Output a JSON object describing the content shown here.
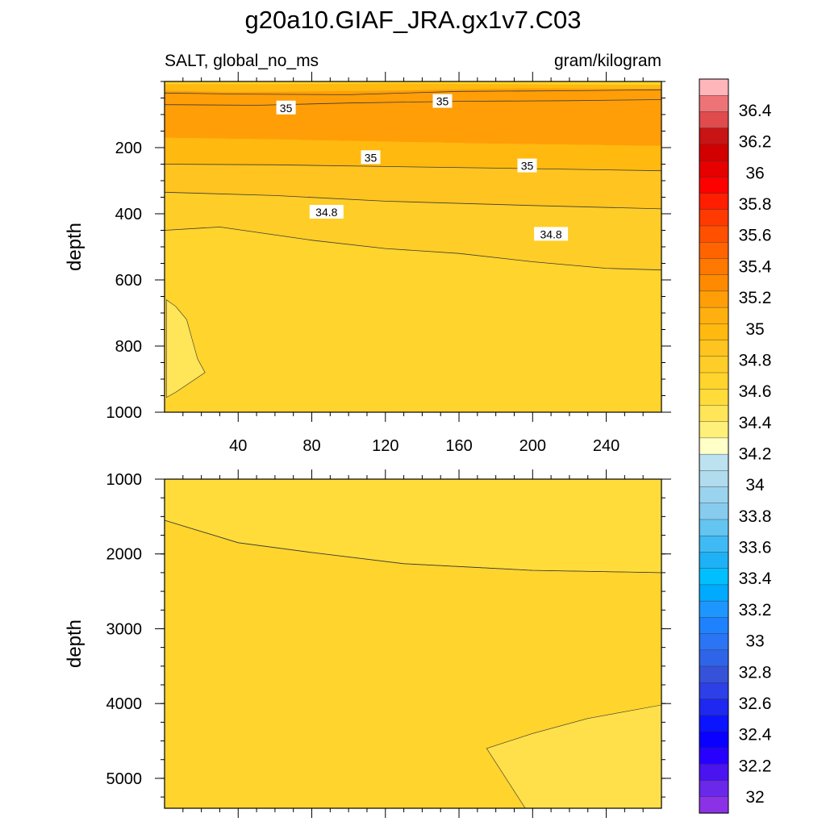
{
  "chart_data": {
    "type": "contour",
    "title": "g20a10.GIAF_JRA.gx1v7.C03",
    "variable_label": "SALT, global_no_ms",
    "units_label": "gram/kilogram",
    "x": {
      "range": [
        0,
        270
      ],
      "ticks": [
        40,
        80,
        120,
        160,
        200,
        240
      ],
      "label": ""
    },
    "panels": [
      {
        "name": "upper",
        "ylabel": "depth",
        "ylim": [
          0,
          1000
        ],
        "yticks": [
          200,
          400,
          600,
          800,
          1000
        ],
        "fill_color": "#FFD42C",
        "regions": [
          {
            "name": "surface-band",
            "color": "#FFB90F",
            "boundary_top": [
              [
                0,
                8
              ],
              [
                60,
                8
              ],
              [
                120,
                6
              ],
              [
                180,
                8
              ],
              [
                270,
                10
              ]
            ],
            "boundary_bottom": [
              [
                0,
                28
              ],
              [
                40,
                32
              ],
              [
                80,
                30
              ],
              [
                120,
                28
              ],
              [
                160,
                24
              ],
              [
                200,
                20
              ],
              [
                240,
                22
              ],
              [
                270,
                22
              ]
            ]
          },
          {
            "name": "core-35.2",
            "color": "#FF9E07",
            "boundary_top": [
              [
                0,
                28
              ],
              [
                40,
                32
              ],
              [
                80,
                30
              ],
              [
                120,
                28
              ],
              [
                160,
                24
              ],
              [
                200,
                20
              ],
              [
                240,
                22
              ],
              [
                270,
                22
              ]
            ],
            "boundary_bottom": [
              [
                0,
                170
              ],
              [
                60,
                175
              ],
              [
                120,
                182
              ],
              [
                180,
                188
              ],
              [
                270,
                195
              ]
            ]
          },
          {
            "name": "band-35",
            "color": "#FFB90F",
            "boundary_top": [
              [
                0,
                170
              ],
              [
                60,
                175
              ],
              [
                120,
                182
              ],
              [
                180,
                188
              ],
              [
                270,
                195
              ]
            ],
            "boundary_bottom": [
              [
                0,
                250
              ],
              [
                60,
                252
              ],
              [
                120,
                257
              ],
              [
                180,
                262
              ],
              [
                270,
                270
              ]
            ]
          },
          {
            "name": "band-34.9",
            "color": "#FFC41F",
            "boundary_top": [
              [
                0,
                250
              ],
              [
                60,
                252
              ],
              [
                120,
                257
              ],
              [
                180,
                262
              ],
              [
                270,
                270
              ]
            ],
            "boundary_bottom": [
              [
                0,
                335
              ],
              [
                60,
                345
              ],
              [
                120,
                362
              ],
              [
                200,
                375
              ],
              [
                270,
                385
              ]
            ]
          },
          {
            "name": "band-34.8",
            "color": "#FFCD27",
            "boundary_top": [
              [
                0,
                335
              ],
              [
                60,
                345
              ],
              [
                120,
                362
              ],
              [
                200,
                375
              ],
              [
                270,
                385
              ]
            ],
            "boundary_bottom": [
              [
                0,
                450
              ],
              [
                30,
                440
              ],
              [
                80,
                480
              ],
              [
                120,
                505
              ],
              [
                160,
                520
              ],
              [
                200,
                545
              ],
              [
                240,
                565
              ],
              [
                270,
                570
              ]
            ]
          },
          {
            "name": "band-34.7",
            "color": "#FFD42C",
            "boundary_top": [
              [
                0,
                450
              ],
              [
                30,
                440
              ],
              [
                80,
                480
              ],
              [
                120,
                505
              ],
              [
                160,
                520
              ],
              [
                200,
                545
              ],
              [
                240,
                565
              ],
              [
                270,
                570
              ]
            ],
            "boundary_bottom": [
              [
                0,
                1000
              ],
              [
                270,
                1000
              ]
            ]
          }
        ],
        "patches": [
          {
            "name": "low-salinity-patch",
            "color": "#FFE558",
            "points": [
              [
                1,
                660
              ],
              [
                6,
                680
              ],
              [
                12,
                720
              ],
              [
                15,
                780
              ],
              [
                18,
                840
              ],
              [
                22,
                880
              ],
              [
                14,
                910
              ],
              [
                6,
                940
              ],
              [
                1,
                955
              ]
            ]
          }
        ],
        "contour_lines": [
          {
            "name": "iso-35.1",
            "points": [
              [
                0,
                35
              ],
              [
                40,
                38
              ],
              [
                100,
                40
              ],
              [
                160,
                30
              ],
              [
                220,
                28
              ],
              [
                270,
                25
              ]
            ]
          },
          {
            "name": "iso-35.0-shallow",
            "points": [
              [
                0,
                70
              ],
              [
                50,
                72
              ],
              [
                100,
                65
              ],
              [
                160,
                60
              ],
              [
                220,
                58
              ],
              [
                270,
                55
              ]
            ]
          },
          {
            "name": "iso-35.0-deep",
            "points": [
              [
                0,
                250
              ],
              [
                60,
                252
              ],
              [
                120,
                257
              ],
              [
                180,
                262
              ],
              [
                270,
                270
              ]
            ]
          },
          {
            "name": "iso-34.9",
            "points": [
              [
                0,
                335
              ],
              [
                60,
                345
              ],
              [
                120,
                362
              ],
              [
                200,
                375
              ],
              [
                270,
                385
              ]
            ]
          },
          {
            "name": "iso-34.8",
            "points": [
              [
                0,
                450
              ],
              [
                30,
                440
              ],
              [
                80,
                480
              ],
              [
                120,
                505
              ],
              [
                160,
                520
              ],
              [
                200,
                545
              ],
              [
                240,
                565
              ],
              [
                270,
                570
              ]
            ]
          }
        ],
        "labels": [
          {
            "text": "35",
            "x": 66,
            "y": 80
          },
          {
            "text": "35",
            "x": 151,
            "y": 60
          },
          {
            "text": "35",
            "x": 112,
            "y": 230
          },
          {
            "text": "35",
            "x": 197,
            "y": 255
          },
          {
            "text": "34.8",
            "x": 88,
            "y": 395
          },
          {
            "text": "34.8",
            "x": 210,
            "y": 462
          }
        ]
      },
      {
        "name": "lower",
        "ylabel": "depth",
        "ylim": [
          1000,
          5400
        ],
        "yticks": [
          1000,
          2000,
          3000,
          4000,
          5000
        ],
        "fill_color": "#FFD42C",
        "patches": [
          {
            "name": "upper-deep-band",
            "color": "#FFDC3A",
            "points": [
              [
                0,
                1000
              ],
              [
                270,
                1000
              ],
              [
                270,
                2250
              ],
              [
                200,
                2220
              ],
              [
                130,
                2130
              ],
              [
                80,
                1980
              ],
              [
                40,
                1850
              ],
              [
                0,
                1550
              ]
            ]
          },
          {
            "name": "deep-bottom-patch",
            "color": "#FFE04A",
            "points": [
              [
                270,
                4020
              ],
              [
                230,
                4200
              ],
              [
                200,
                4400
              ],
              [
                175,
                4600
              ],
              [
                196,
                5400
              ],
              [
                270,
                5400
              ]
            ]
          }
        ],
        "contour_lines": [
          {
            "name": "iso-34.7-deep",
            "points": [
              [
                0,
                1550
              ],
              [
                40,
                1850
              ],
              [
                80,
                1980
              ],
              [
                130,
                2130
              ],
              [
                200,
                2220
              ],
              [
                270,
                2250
              ]
            ]
          }
        ]
      }
    ],
    "colorbar": {
      "labels": [
        "36.4",
        "36.2",
        "36",
        "35.8",
        "35.6",
        "35.4",
        "35.2",
        "35",
        "34.8",
        "34.6",
        "34.4",
        "34.2",
        "34",
        "33.8",
        "33.6",
        "33.4",
        "33.2",
        "33",
        "32.8",
        "32.6",
        "32.4",
        "32.2",
        "32"
      ],
      "colors": [
        "#FFB6BB",
        "#EE7377",
        "#E04B4E",
        "#C81414",
        "#D20000",
        "#E60000",
        "#FF0000",
        "#FF1E00",
        "#FF3A00",
        "#FF5000",
        "#FF6400",
        "#FF7800",
        "#FF8A00",
        "#FF9E07",
        "#FFB00F",
        "#FFB90F",
        "#FFC41F",
        "#FFCD27",
        "#FFD42C",
        "#FFDC3A",
        "#FFE558",
        "#FFF07A",
        "#FFFFC8",
        "#BCE1EF",
        "#B0DCEE",
        "#9AD3EE",
        "#87CCEE",
        "#63C5F0",
        "#3FBAF5",
        "#1EB1F5",
        "#00BFFF",
        "#00AAFF",
        "#1E96FF",
        "#1E82FF",
        "#2B74F4",
        "#2E64E8",
        "#3552D8",
        "#2D3FE6",
        "#1E28F0",
        "#0A14FF",
        "#0A00FF",
        "#2800FF",
        "#4A14F0",
        "#6A28EA",
        "#8C32E6"
      ]
    }
  }
}
